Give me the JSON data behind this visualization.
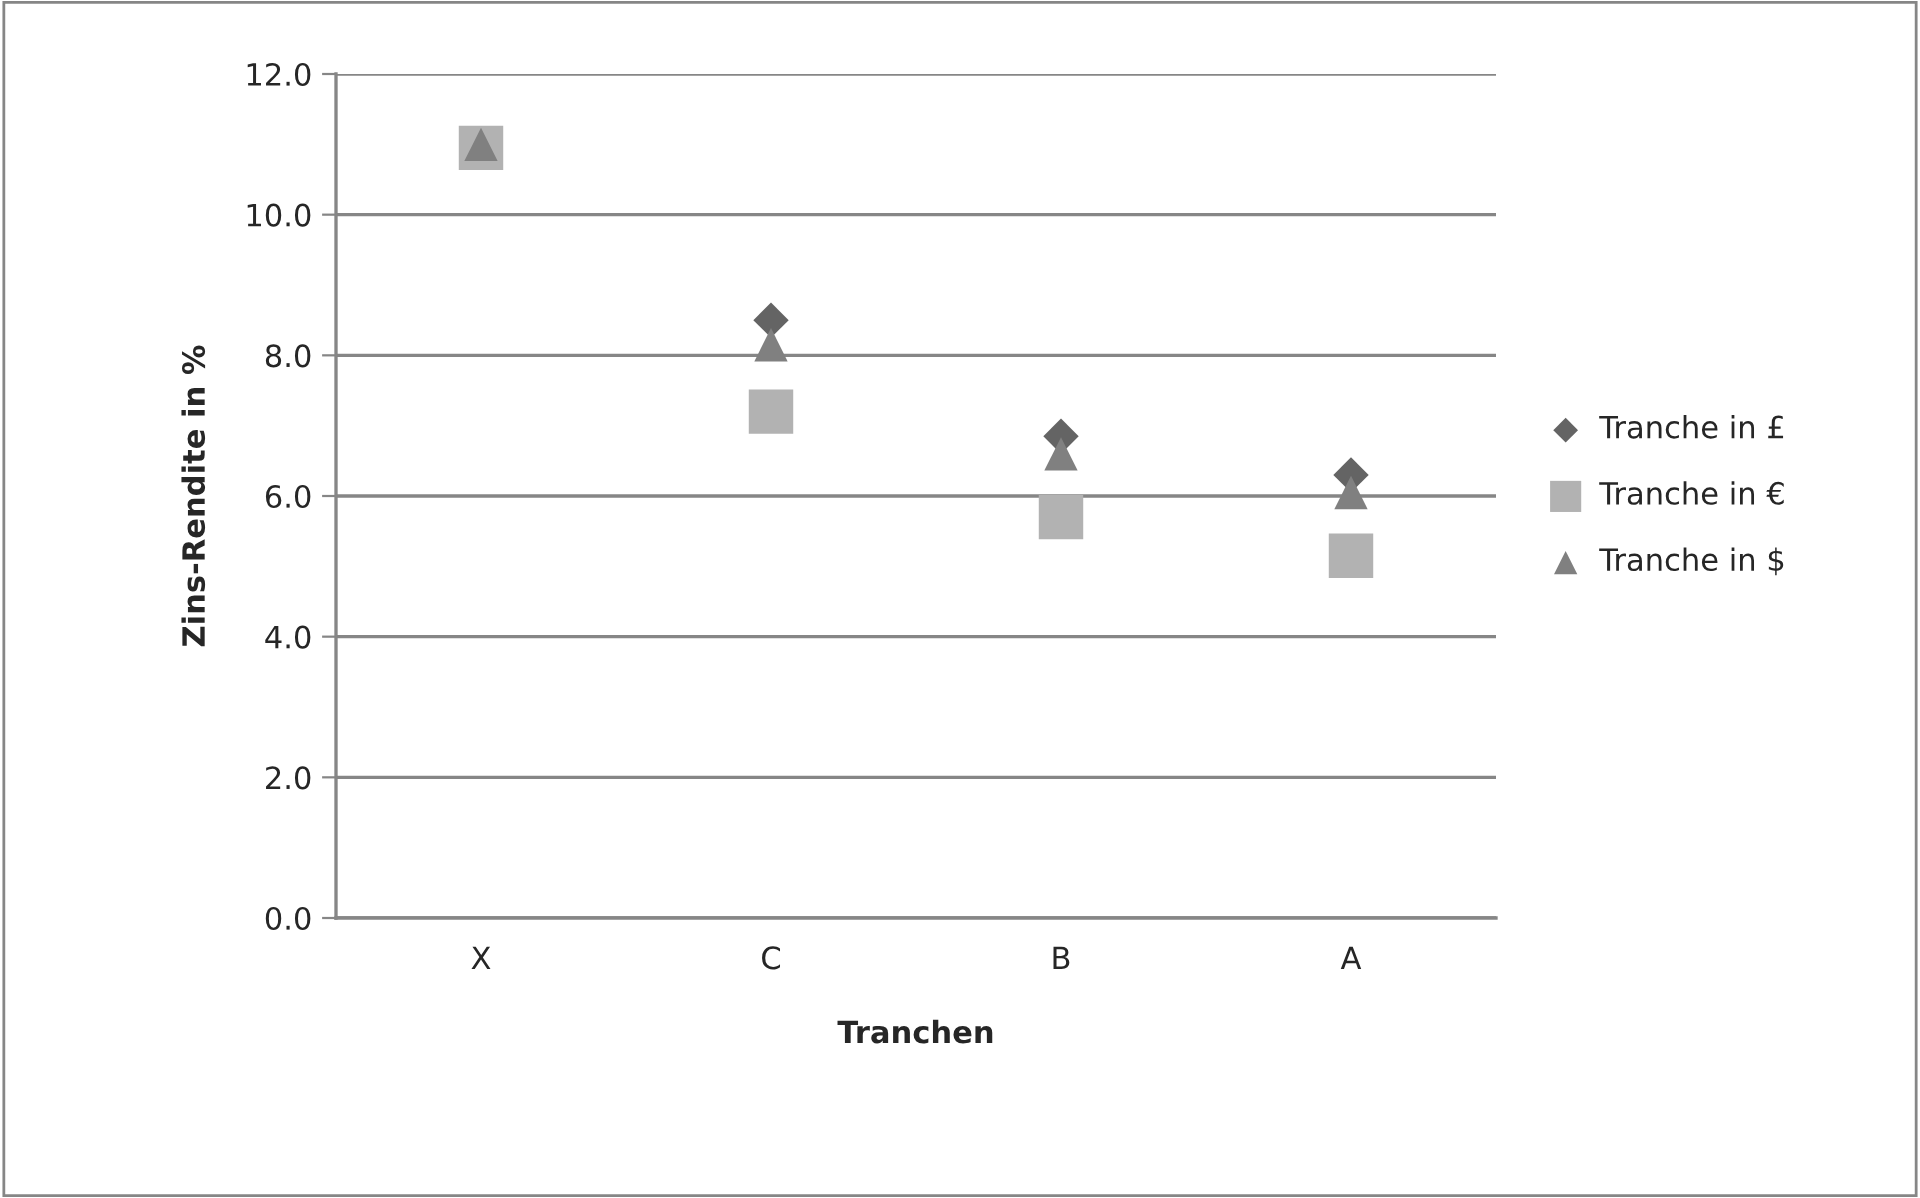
{
  "chart_data": {
    "type": "scatter",
    "xlabel": "Tranchen",
    "ylabel": "Zins-Rendite in %",
    "categories": [
      "X",
      "C",
      "B",
      "A"
    ],
    "series": [
      {
        "name": "Tranche in £",
        "color": "#646464",
        "marker": "diamond",
        "values": [
          null,
          8.5,
          6.85,
          6.3
        ]
      },
      {
        "name": "Tranche in €",
        "color": "#b2b2b2",
        "marker": "square",
        "values": [
          10.95,
          7.2,
          5.7,
          5.15
        ]
      },
      {
        "name": "Tranche in $",
        "color": "#808080",
        "marker": "triangle",
        "values": [
          11.0,
          8.15,
          6.6,
          6.05
        ]
      }
    ],
    "ylim": [
      0,
      12
    ],
    "yticks": [
      {
        "value": 0,
        "label": "0.0"
      },
      {
        "value": 2,
        "label": "2.0"
      },
      {
        "value": 4,
        "label": "4.0"
      },
      {
        "value": 6,
        "label": "6.0"
      },
      {
        "value": 8,
        "label": "8.0"
      },
      {
        "value": 10,
        "label": "10.0"
      },
      {
        "value": 12,
        "label": "12.0"
      }
    ],
    "grid": "y",
    "legend": "right"
  }
}
